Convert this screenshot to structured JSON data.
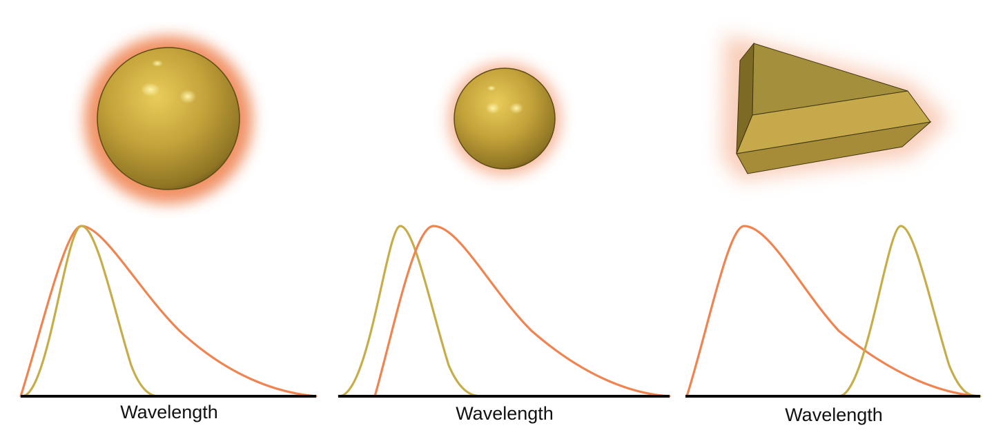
{
  "colors": {
    "plasmon_glow": "#f08a5d",
    "particle_gold": "#c9a93f",
    "orange_curve": "#ef8450",
    "gold_curve": "#c7ad4a",
    "axis": "#000000"
  },
  "panels": [
    {
      "particle": "large-sphere",
      "xlabel": "Wavelength"
    },
    {
      "particle": "small-sphere",
      "xlabel": "Wavelength"
    },
    {
      "particle": "triangular-prism",
      "xlabel": "Wavelength"
    }
  ]
}
